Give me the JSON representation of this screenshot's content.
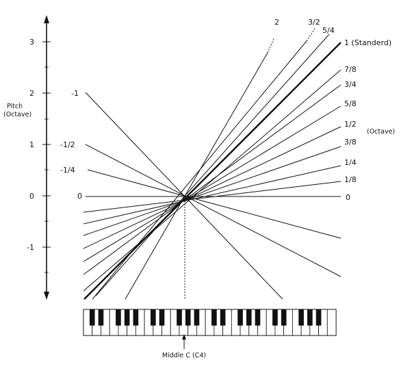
{
  "axis": {
    "title_line1": "Pitch",
    "title_line2": "(Octave)",
    "ticks": [
      3,
      2,
      1,
      0,
      -1
    ]
  },
  "right_axis_label": "(Octave)",
  "left_labels": [
    "-1",
    "-1/2",
    "-1/4",
    "0"
  ],
  "right_labels": [
    "2",
    "3/2",
    "5/4",
    "1  (Standerd)",
    "7/8",
    "3/4",
    "5/8",
    "1/2",
    "3/8",
    "1/4",
    "1/8",
    "0"
  ],
  "keyboard_caption": "Middle C (C4)"
}
